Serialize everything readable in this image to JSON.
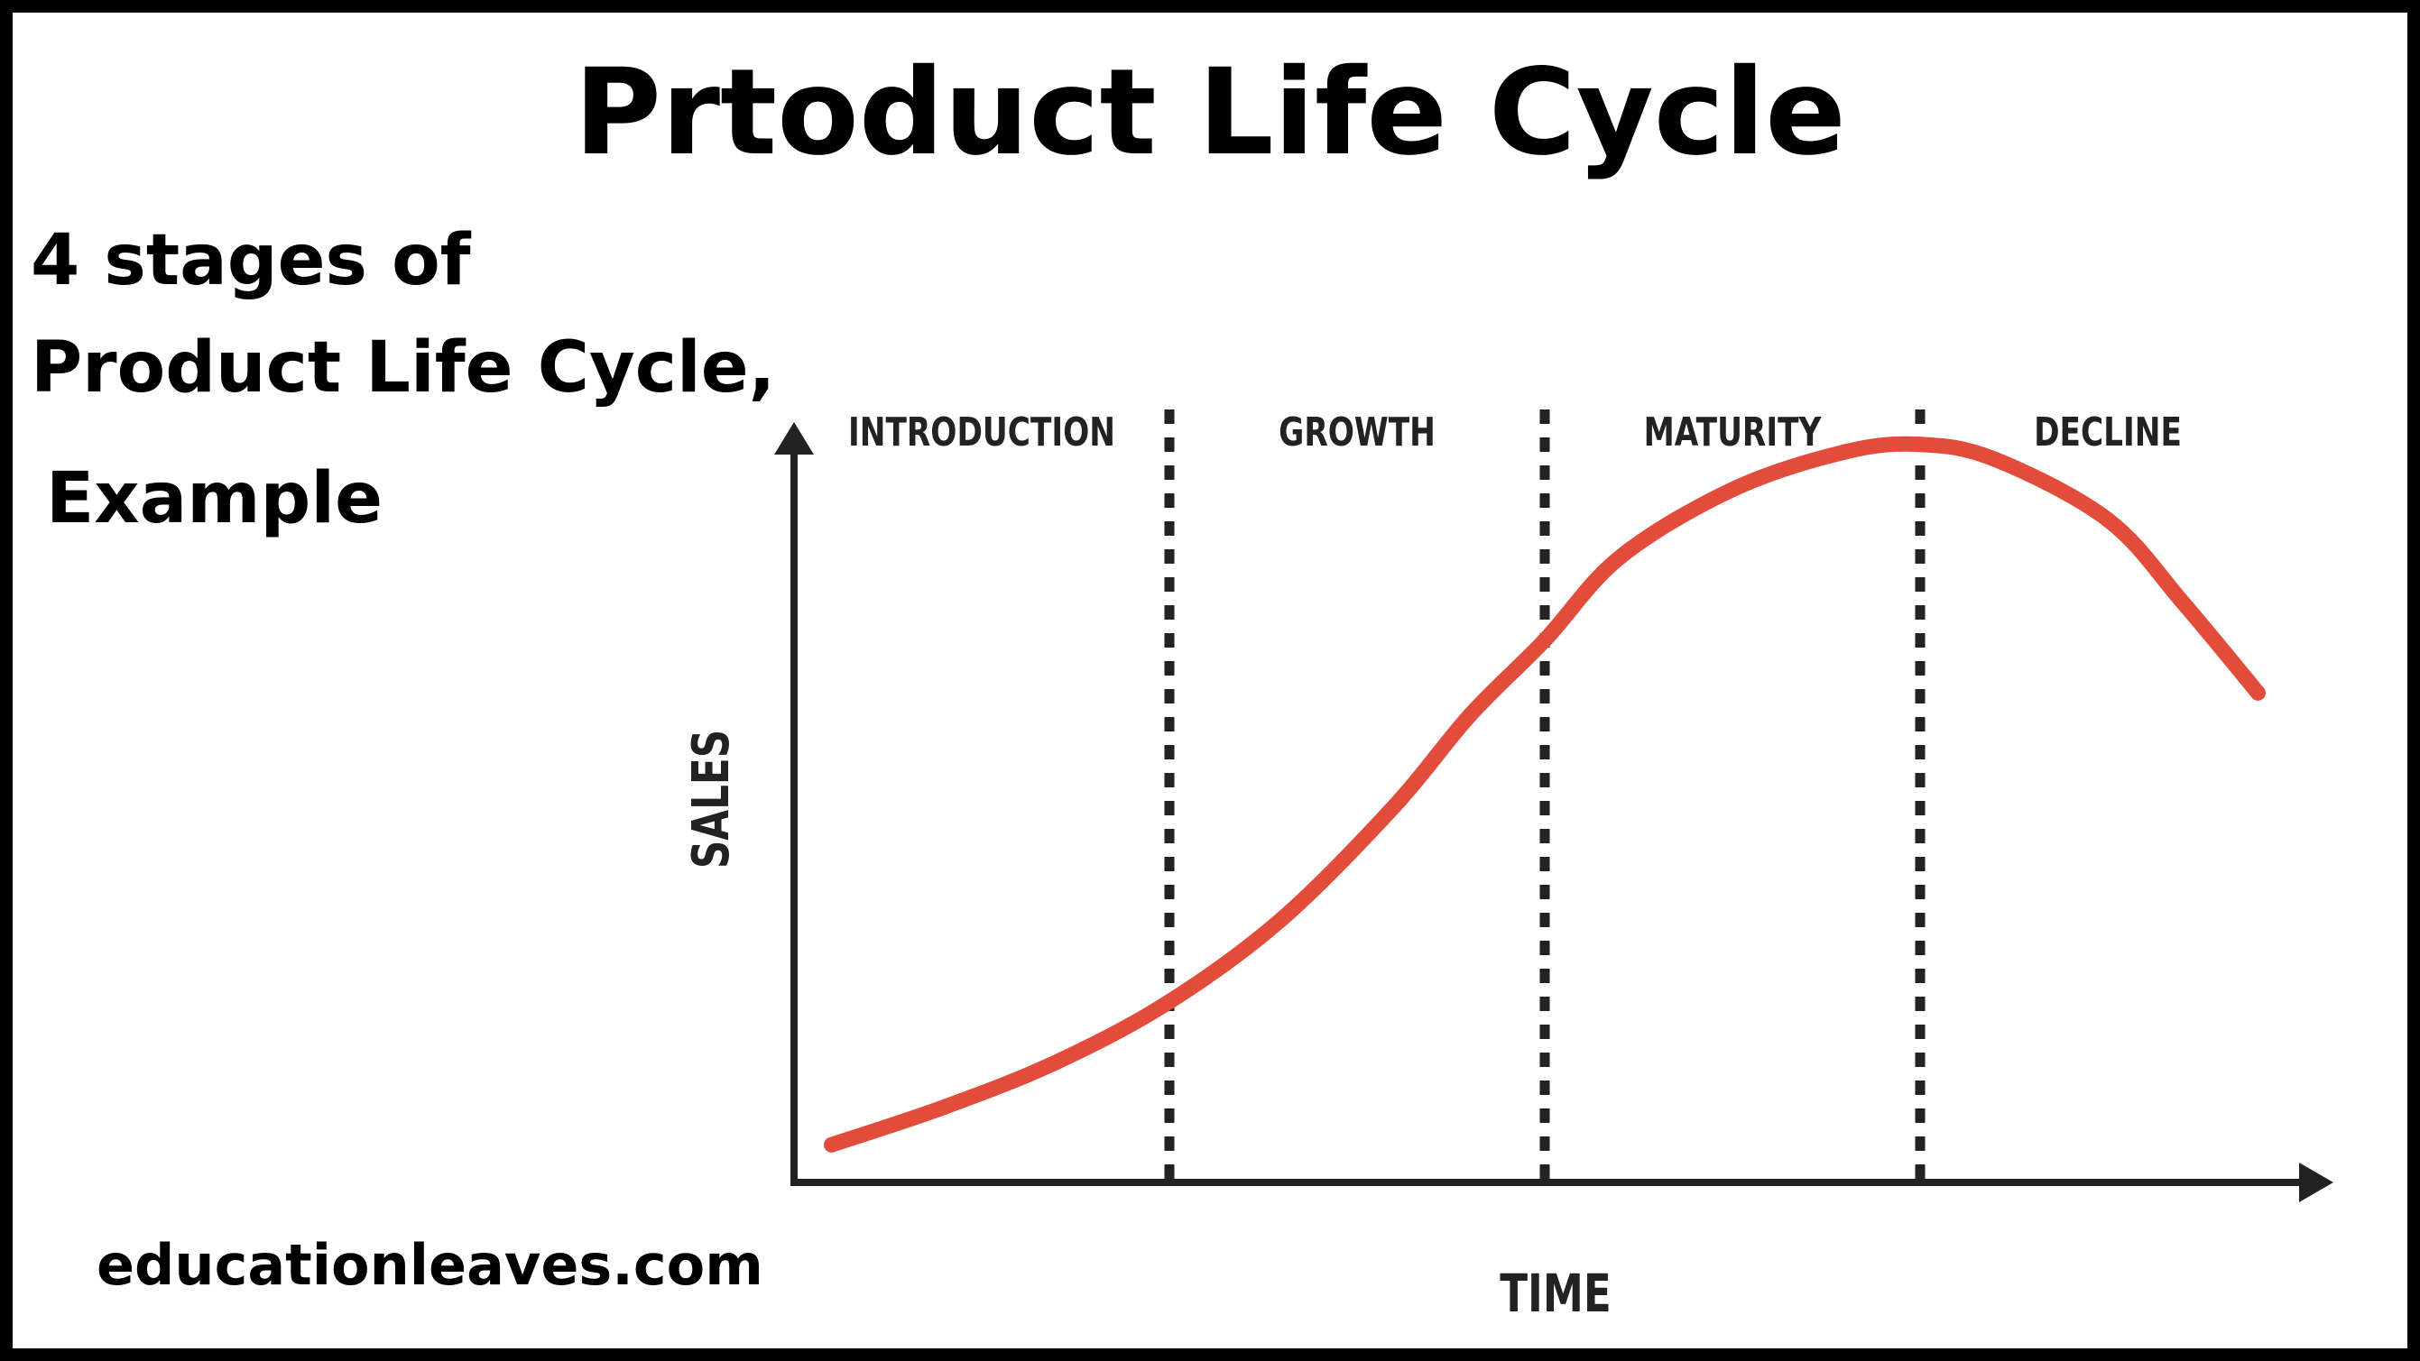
{
  "header": {
    "title": "Prtoduct Life Cycle",
    "subtitle_lines": [
      "4 stages of",
      "Product Life Cycle,",
      "Example"
    ]
  },
  "footer": {
    "credit": "educationleaves.com"
  },
  "colors": {
    "curve": "#e34b3a",
    "axis": "#222222",
    "frame": "#000000",
    "background": "#ffffff"
  },
  "chart_data": {
    "type": "line",
    "title": "",
    "xlabel": "TIME",
    "ylabel": "SALES",
    "xlim": [
      0,
      4
    ],
    "ylim": [
      0,
      1
    ],
    "grid": false,
    "stages": [
      "INTRODUCTION",
      "GROWTH",
      "MATURITY",
      "DECLINE"
    ],
    "stage_boundaries": [
      1,
      2,
      3
    ],
    "series": [
      {
        "x": [
          0.1,
          0.4,
          0.7,
          1.0,
          1.3,
          1.6,
          1.8,
          2.0,
          2.2,
          2.5,
          2.8,
          3.0,
          3.2,
          3.5,
          3.7,
          3.9
        ],
        "values": [
          0.05,
          0.1,
          0.16,
          0.24,
          0.35,
          0.5,
          0.62,
          0.72,
          0.83,
          0.92,
          0.97,
          0.98,
          0.96,
          0.88,
          0.77,
          0.65
        ]
      }
    ]
  }
}
